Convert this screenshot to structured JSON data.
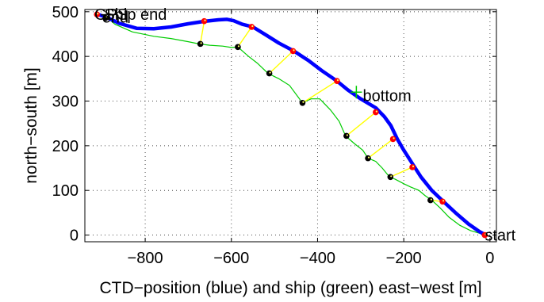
{
  "chart_data": {
    "type": "line",
    "title": "",
    "xlabel": "CTD−position (blue) and ship (green) east−west [m]",
    "ylabel": "north−south [m]",
    "xlim": [
      -940,
      15
    ],
    "ylim": [
      -15,
      505
    ],
    "xticks": [
      -800,
      -600,
      -400,
      -200,
      0
    ],
    "yticks": [
      0,
      100,
      200,
      300,
      400,
      500
    ],
    "xtick_labels": [
      "−800",
      "−600",
      "−400",
      "−200",
      "0"
    ],
    "ytick_labels": [
      "0",
      "100",
      "200",
      "300",
      "400",
      "500"
    ],
    "grid": true,
    "series": [
      {
        "color": "#0000ff",
        "points": [
          [
            -910,
            494
          ],
          [
            -890,
            488
          ],
          [
            -860,
            474
          ],
          [
            -820,
            463
          ],
          [
            -780,
            462
          ],
          [
            -740,
            466
          ],
          [
            -700,
            473
          ],
          [
            -660,
            479
          ],
          [
            -630,
            482
          ],
          [
            -610,
            483
          ],
          [
            -595,
            480
          ],
          [
            -575,
            472
          ],
          [
            -550,
            466
          ],
          [
            -520,
            448
          ],
          [
            -490,
            430
          ],
          [
            -455,
            412
          ],
          [
            -420,
            390
          ],
          [
            -390,
            368
          ],
          [
            -355,
            345
          ],
          [
            -330,
            325
          ],
          [
            -300,
            305
          ],
          [
            -265,
            285
          ],
          [
            -245,
            265
          ],
          [
            -230,
            245
          ],
          [
            -215,
            215
          ],
          [
            -200,
            190
          ],
          [
            -180,
            160
          ],
          [
            -160,
            130
          ],
          [
            -135,
            100
          ],
          [
            -108,
            75
          ],
          [
            -80,
            50
          ],
          [
            -50,
            25
          ],
          [
            -25,
            8
          ],
          [
            -10,
            0
          ]
        ]
      },
      {
        "color": "#00cc00",
        "points": [
          [
            -890,
            488
          ],
          [
            -870,
            472
          ],
          [
            -830,
            455
          ],
          [
            -780,
            445
          ],
          [
            -740,
            440
          ],
          [
            -700,
            433
          ],
          [
            -675,
            428
          ],
          [
            -650,
            425
          ],
          [
            -620,
            423
          ],
          [
            -600,
            420
          ],
          [
            -585,
            421
          ],
          [
            -560,
            400
          ],
          [
            -540,
            385
          ],
          [
            -515,
            362
          ],
          [
            -490,
            350
          ],
          [
            -465,
            335
          ],
          [
            -435,
            296
          ],
          [
            -415,
            305
          ],
          [
            -395,
            305
          ],
          [
            -370,
            280
          ],
          [
            -350,
            255
          ],
          [
            -335,
            222
          ],
          [
            -315,
            205
          ],
          [
            -295,
            190
          ],
          [
            -283,
            172
          ],
          [
            -265,
            165
          ],
          [
            -250,
            150
          ],
          [
            -233,
            130
          ],
          [
            -220,
            125
          ],
          [
            -200,
            115
          ],
          [
            -185,
            108
          ],
          [
            -165,
            100
          ],
          [
            -150,
            88
          ],
          [
            -135,
            78
          ],
          [
            -115,
            60
          ],
          [
            -95,
            40
          ],
          [
            -70,
            22
          ],
          [
            -45,
            10
          ],
          [
            -20,
            3
          ],
          [
            -10,
            0
          ]
        ]
      },
      {
        "color": "#ffff00",
        "segments": [
          [
            [
              -892,
              486
            ],
            [
              -912,
              494
            ]
          ],
          [
            [
              -672,
              428
            ],
            [
              -663,
              479
            ]
          ],
          [
            [
              -585,
              421
            ],
            [
              -553,
              466
            ]
          ],
          [
            [
              -512,
              362
            ],
            [
              -457,
              412
            ]
          ],
          [
            [
              -435,
              296
            ],
            [
              -355,
              345
            ]
          ],
          [
            [
              -333,
              222
            ],
            [
              -265,
              275
            ]
          ],
          [
            [
              -283,
              172
            ],
            [
              -225,
              215
            ]
          ],
          [
            [
              -231,
              130
            ],
            [
              -180,
              152
            ]
          ],
          [
            [
              -138,
              78
            ],
            [
              -110,
              75
            ]
          ]
        ]
      }
    ],
    "markers": {
      "red": [
        [
          -912,
          494
        ],
        [
          -663,
          479
        ],
        [
          -553,
          466
        ],
        [
          -457,
          412
        ],
        [
          -355,
          345
        ],
        [
          -265,
          275
        ],
        [
          -225,
          215
        ],
        [
          -180,
          152
        ],
        [
          -110,
          75
        ],
        [
          -12,
          0
        ]
      ],
      "black": [
        [
          -892,
          486
        ],
        [
          -672,
          428
        ],
        [
          -585,
          421
        ],
        [
          -512,
          362
        ],
        [
          -435,
          296
        ],
        [
          -333,
          222
        ],
        [
          -283,
          172
        ],
        [
          -231,
          130
        ],
        [
          -138,
          78
        ]
      ]
    },
    "annotations": [
      {
        "text": "GPS",
        "x": -918,
        "y": 494
      },
      {
        "text": "end",
        "x": -900,
        "y": 488
      },
      {
        "text": "Ship end",
        "x": -895,
        "y": 494
      },
      {
        "text": "bottom",
        "x": -295,
        "y": 312
      },
      {
        "text": "start",
        "x": -12,
        "y": 0
      }
    ],
    "bottom_cross": [
      -310,
      320
    ]
  }
}
